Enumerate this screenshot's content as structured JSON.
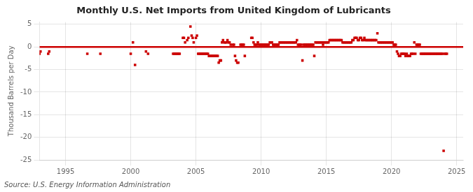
{
  "chart_data": {
    "type": "scatter",
    "title": "Monthly U.S. Net Imports from United Kingdom of Lubricants",
    "ylabel": "Thousand Barrels per Day",
    "annotations": [
      "Source: U.S. Energy Information Administration"
    ],
    "color": "#cc0000",
    "marker": "square",
    "grid": true,
    "reference_line": {
      "y": 0,
      "color": "#cc0000"
    },
    "xlim": [
      1993.0,
      2025.5
    ],
    "ylim": [
      -25,
      5.5
    ],
    "xticks": [
      1995,
      2000,
      2005,
      2010,
      2015,
      2020,
      2025
    ],
    "yticks": [
      5,
      0,
      -5,
      -10,
      -15,
      -20,
      -25
    ],
    "x": [
      1993.0,
      1993.08,
      1993.67,
      1993.75,
      1996.67,
      1997.67,
      2000.0,
      2000.17,
      2000.33,
      2001.17,
      2001.33,
      2003.25,
      2003.33,
      2003.42,
      2003.5,
      2003.58,
      2003.67,
      2003.75,
      2004.0,
      2004.08,
      2004.17,
      2004.33,
      2004.42,
      2004.58,
      2004.67,
      2004.75,
      2004.83,
      2005.0,
      2005.08,
      2005.17,
      2005.25,
      2005.33,
      2005.42,
      2005.5,
      2005.58,
      2005.67,
      2005.75,
      2005.83,
      2005.92,
      2006.0,
      2006.08,
      2006.17,
      2006.25,
      2006.33,
      2006.42,
      2006.5,
      2006.58,
      2006.67,
      2006.75,
      2006.83,
      2006.92,
      2007.0,
      2007.08,
      2007.17,
      2007.25,
      2007.33,
      2007.42,
      2007.5,
      2007.58,
      2007.67,
      2007.83,
      2007.92,
      2008.0,
      2008.08,
      2008.17,
      2008.25,
      2008.42,
      2008.5,
      2008.58,
      2008.67,
      2008.75,
      2009.25,
      2009.33,
      2009.42,
      2009.5,
      2009.58,
      2009.67,
      2009.75,
      2009.83,
      2009.92,
      2010.0,
      2010.08,
      2010.17,
      2010.25,
      2010.33,
      2010.42,
      2010.5,
      2010.58,
      2010.67,
      2010.75,
      2010.83,
      2010.92,
      2011.0,
      2011.08,
      2011.17,
      2011.25,
      2011.33,
      2011.42,
      2011.5,
      2011.58,
      2011.67,
      2011.75,
      2011.83,
      2011.92,
      2012.0,
      2012.08,
      2012.17,
      2012.25,
      2012.33,
      2012.42,
      2012.5,
      2012.58,
      2012.67,
      2012.75,
      2012.83,
      2012.92,
      2013.0,
      2013.08,
      2013.17,
      2013.25,
      2013.33,
      2013.42,
      2013.5,
      2013.58,
      2013.67,
      2013.75,
      2013.83,
      2013.92,
      2014.0,
      2014.08,
      2014.17,
      2014.25,
      2014.33,
      2014.42,
      2014.5,
      2014.58,
      2014.67,
      2014.75,
      2014.83,
      2014.92,
      2015.0,
      2015.08,
      2015.17,
      2015.25,
      2015.33,
      2015.42,
      2015.5,
      2015.58,
      2015.67,
      2015.75,
      2015.83,
      2015.92,
      2016.0,
      2016.08,
      2016.17,
      2016.25,
      2016.33,
      2016.42,
      2016.5,
      2016.58,
      2016.67,
      2016.75,
      2016.83,
      2016.92,
      2017.0,
      2017.08,
      2017.17,
      2017.25,
      2017.33,
      2017.42,
      2017.5,
      2017.58,
      2017.67,
      2017.75,
      2017.83,
      2017.92,
      2018.0,
      2018.08,
      2018.17,
      2018.25,
      2018.33,
      2018.42,
      2018.5,
      2018.58,
      2018.67,
      2018.75,
      2018.83,
      2018.92,
      2019.0,
      2019.08,
      2019.17,
      2019.25,
      2019.33,
      2019.42,
      2019.5,
      2019.58,
      2019.67,
      2019.75,
      2019.83,
      2019.92,
      2020.0,
      2020.08,
      2020.17,
      2020.25,
      2020.33,
      2020.42,
      2020.5,
      2020.58,
      2020.67,
      2020.75,
      2020.83,
      2020.92,
      2021.0,
      2021.08,
      2021.17,
      2021.25,
      2021.33,
      2021.42,
      2021.5,
      2021.58,
      2021.67,
      2021.75,
      2021.83,
      2021.92,
      2022.0,
      2022.08,
      2022.17,
      2022.25,
      2022.33,
      2022.42,
      2022.5,
      2022.58,
      2022.67,
      2022.75,
      2022.83,
      2022.92,
      2023.0,
      2023.08,
      2023.17,
      2023.25,
      2023.33,
      2023.42,
      2023.5,
      2023.58,
      2023.67,
      2023.75,
      2023.83,
      2023.92,
      2024.0,
      2024.08,
      2024.17,
      2024.25
    ],
    "values": [
      -1.5,
      -1.0,
      -1.5,
      -1.0,
      -1.5,
      -1.5,
      -1.5,
      1.0,
      -4.0,
      -1.0,
      -1.5,
      -1.5,
      -1.5,
      -1.5,
      -1.5,
      -1.5,
      -1.5,
      -1.5,
      2.0,
      2.0,
      1.0,
      1.5,
      2.0,
      4.5,
      2.5,
      2.0,
      1.0,
      2.0,
      2.5,
      -1.5,
      -1.5,
      -1.5,
      -1.5,
      -1.5,
      -1.5,
      -1.5,
      -1.5,
      -1.5,
      -1.5,
      -2.0,
      -2.0,
      -2.0,
      -2.0,
      -2.0,
      -2.0,
      -2.0,
      -2.0,
      -2.0,
      -3.5,
      -3.0,
      -3.0,
      1.0,
      1.5,
      1.0,
      1.0,
      1.0,
      1.5,
      1.0,
      1.0,
      0.5,
      0.5,
      0.5,
      -2.0,
      -3.0,
      -3.5,
      -3.5,
      0.5,
      0.5,
      0.5,
      0.5,
      -2.0,
      2.0,
      2.0,
      1.0,
      0.5,
      0.5,
      0.5,
      1.0,
      0.5,
      0.5,
      0.5,
      0.5,
      0.5,
      0.5,
      0.5,
      0.5,
      0.5,
      0.5,
      1.0,
      1.0,
      1.0,
      0.5,
      0.5,
      0.5,
      0.5,
      0.5,
      0.5,
      1.0,
      1.0,
      1.0,
      1.0,
      1.0,
      1.0,
      1.0,
      1.0,
      1.0,
      1.0,
      1.0,
      1.0,
      1.0,
      1.0,
      1.0,
      1.0,
      1.5,
      0.5,
      0.5,
      0.5,
      0.5,
      -3.0,
      0.5,
      0.5,
      0.5,
      0.5,
      0.5,
      0.5,
      0.5,
      0.5,
      0.5,
      0.5,
      -2.0,
      1.0,
      1.0,
      1.0,
      1.0,
      1.0,
      1.0,
      1.0,
      0.5,
      1.0,
      1.0,
      1.0,
      1.0,
      1.0,
      1.5,
      1.5,
      1.5,
      1.5,
      1.5,
      1.5,
      1.5,
      1.5,
      1.5,
      1.5,
      1.5,
      1.5,
      1.0,
      1.0,
      1.0,
      1.0,
      1.0,
      1.0,
      1.0,
      1.0,
      1.0,
      1.5,
      1.5,
      2.0,
      2.0,
      2.0,
      1.5,
      1.5,
      2.0,
      2.0,
      1.5,
      1.5,
      2.0,
      1.5,
      1.5,
      1.5,
      1.5,
      1.5,
      1.5,
      1.5,
      1.5,
      1.5,
      1.5,
      1.5,
      3.0,
      1.0,
      1.0,
      1.0,
      1.0,
      1.0,
      1.0,
      1.0,
      1.0,
      1.0,
      1.0,
      1.0,
      1.0,
      1.0,
      1.0,
      0.5,
      0.5,
      0.5,
      -1.0,
      -1.5,
      -2.0,
      -2.0,
      -1.5,
      -1.5,
      -1.5,
      -1.5,
      -2.0,
      -1.5,
      -2.0,
      -2.0,
      -2.0,
      -1.5,
      -1.5,
      -1.5,
      1.0,
      -1.5,
      0.5,
      0.5,
      0.5,
      0.5,
      -1.5,
      -1.5,
      -1.5,
      -1.5,
      -1.5,
      -1.5,
      -1.5,
      -1.5,
      -1.5,
      -1.5,
      -1.5,
      -1.5,
      -1.5,
      -1.5,
      -1.5,
      -1.5,
      -1.5,
      -1.5,
      -1.5,
      -1.5,
      -1.5,
      -23.0,
      -1.5,
      -1.5,
      -1.5
    ]
  }
}
